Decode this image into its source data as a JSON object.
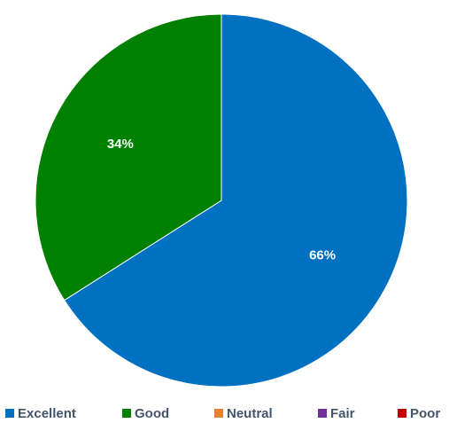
{
  "chart_data": {
    "type": "pie",
    "title": "",
    "categories": [
      "Excellent",
      "Good",
      "Neutral",
      "Fair",
      "Poor"
    ],
    "values": [
      66,
      34,
      0,
      0,
      0
    ],
    "data_labels": [
      "66%",
      "34%",
      "",
      "",
      ""
    ],
    "colors": [
      "#0070c0",
      "#008000",
      "#ed7d31",
      "#7030a0",
      "#c00000"
    ],
    "start_angle_deg": 0,
    "direction": "clockwise",
    "legend_position": "bottom"
  }
}
